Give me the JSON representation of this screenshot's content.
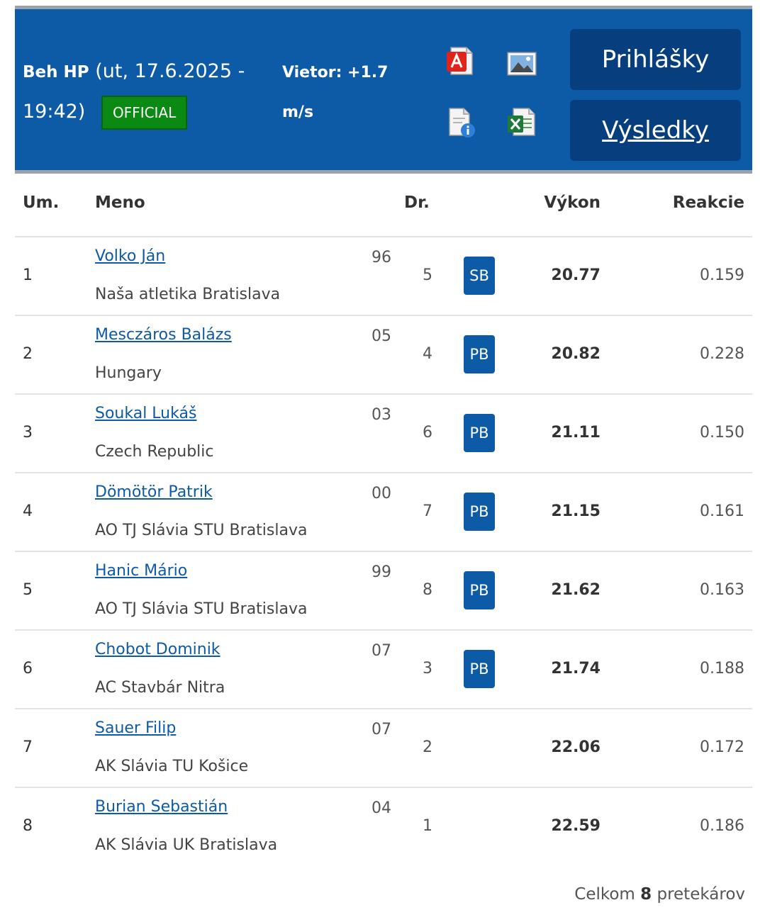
{
  "header": {
    "event_name": "Beh HP",
    "event_datetime": "(ut, 17.6.2025 - 19:42)",
    "status_badge": "OFFICIAL",
    "wind": "Vietor: +1.7 m/s",
    "icons": [
      "pdf-icon",
      "image-icon",
      "info-document-icon",
      "excel-icon"
    ],
    "entries_button": "Prihlášky",
    "results_button": "Výsledky",
    "colors": {
      "header_bg": "#0d5aa7",
      "button_bg": "#073f7e",
      "official_green": "#0a8a12",
      "link_blue": "#0d5aa7"
    }
  },
  "table": {
    "columns": {
      "place": "Um.",
      "name": "Meno",
      "lane": "Dr.",
      "performance": "Výkon",
      "reaction": "Reakcie"
    },
    "rows": [
      {
        "place": "1",
        "name": "Volko Ján",
        "club": "Naša atletika Bratislava",
        "year": "96",
        "lane": "5",
        "badge": "SB",
        "performance": "20.77",
        "reaction": "0.159"
      },
      {
        "place": "2",
        "name": "Mesczáros Balázs",
        "club": "Hungary",
        "year": "05",
        "lane": "4",
        "badge": "PB",
        "performance": "20.82",
        "reaction": "0.228"
      },
      {
        "place": "3",
        "name": "Soukal Lukáš",
        "club": "Czech Republic",
        "year": "03",
        "lane": "6",
        "badge": "PB",
        "performance": "21.11",
        "reaction": "0.150"
      },
      {
        "place": "4",
        "name": "Dömötör Patrik",
        "club": "AO TJ Slávia STU Bratislava",
        "year": "00",
        "lane": "7",
        "badge": "PB",
        "performance": "21.15",
        "reaction": "0.161"
      },
      {
        "place": "5",
        "name": "Hanic Mário",
        "club": "AO TJ Slávia STU Bratislava",
        "year": "99",
        "lane": "8",
        "badge": "PB",
        "performance": "21.62",
        "reaction": "0.163"
      },
      {
        "place": "6",
        "name": "Chobot Dominik",
        "club": "AC Stavbár Nitra",
        "year": "07",
        "lane": "3",
        "badge": "PB",
        "performance": "21.74",
        "reaction": "0.188"
      },
      {
        "place": "7",
        "name": "Sauer Filip",
        "club": "AK Slávia TU Košice",
        "year": "07",
        "lane": "2",
        "badge": "",
        "performance": "22.06",
        "reaction": "0.172"
      },
      {
        "place": "8",
        "name": "Burian Sebastián",
        "club": "AK Slávia UK Bratislava",
        "year": "04",
        "lane": "1",
        "badge": "",
        "performance": "22.59",
        "reaction": "0.186"
      }
    ]
  },
  "footer": {
    "prefix": "Celkom",
    "count": "8",
    "suffix": "pretekárov"
  }
}
